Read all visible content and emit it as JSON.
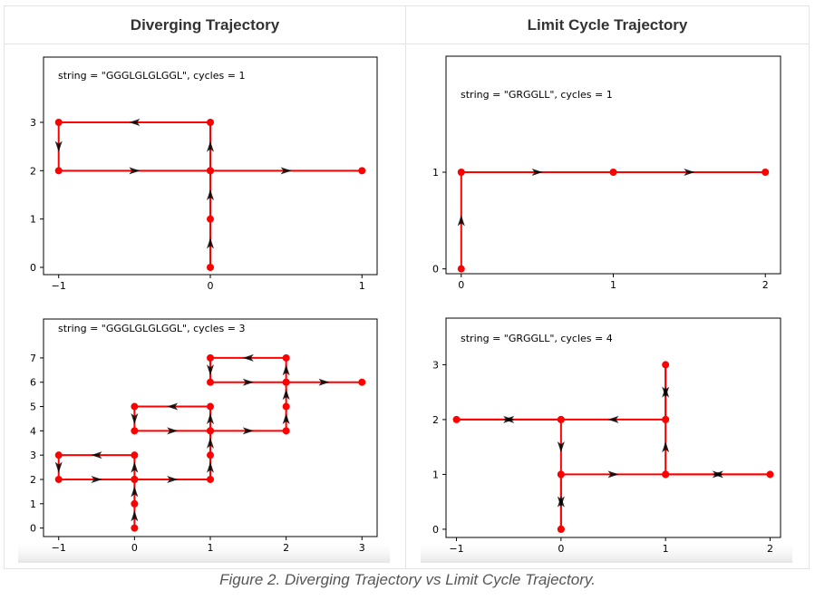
{
  "headers": {
    "left": "Diverging Trajectory",
    "right": "Limit Cycle Trajectory"
  },
  "caption": "Figure 2. Diverging Trajectory vs Limit Cycle Trajectory.",
  "colors": {
    "path": "#ff0000",
    "arrow": "#000000"
  },
  "chart_data": [
    {
      "type": "line",
      "annotation": "string = \"GGGLGLGLGGL\", cycles = 1",
      "xlim": [
        -1.1,
        1.1
      ],
      "ylim": [
        -0.15,
        4.35
      ],
      "xticks": [
        -1,
        0,
        1
      ],
      "xticklabels": [
        "−1",
        "0",
        "1"
      ],
      "yticks": [
        0,
        1,
        2,
        3
      ],
      "yticklabels": [
        "0",
        "1",
        "2",
        "3"
      ],
      "grid": false,
      "points": [
        [
          0,
          0
        ],
        [
          0,
          1
        ],
        [
          0,
          2
        ],
        [
          0,
          3
        ],
        [
          -1,
          3
        ],
        [
          -1,
          2
        ],
        [
          0,
          2
        ],
        [
          1,
          2
        ]
      ]
    },
    {
      "type": "line",
      "annotation": "string = \"GRGGLL\", cycles = 1",
      "xlim": [
        -0.1,
        2.1
      ],
      "ylim": [
        -0.05,
        2.2
      ],
      "xticks": [
        0,
        1,
        2
      ],
      "xticklabels": [
        "0",
        "1",
        "2"
      ],
      "yticks": [
        0,
        1
      ],
      "yticklabels": [
        "0",
        "1"
      ],
      "grid": false,
      "points": [
        [
          0,
          0
        ],
        [
          0,
          1
        ],
        [
          1,
          1
        ],
        [
          2,
          1
        ]
      ]
    },
    {
      "type": "line",
      "annotation": "string = \"GGGLGLGLGGL\", cycles = 3",
      "xlim": [
        -1.2,
        3.2
      ],
      "ylim": [
        -0.35,
        8.6
      ],
      "xticks": [
        -1,
        0,
        1,
        2,
        3
      ],
      "xticklabels": [
        "−1",
        "0",
        "1",
        "2",
        "3"
      ],
      "yticks": [
        0,
        1,
        2,
        3,
        4,
        5,
        6,
        7
      ],
      "yticklabels": [
        "0",
        "1",
        "2",
        "3",
        "4",
        "5",
        "6",
        "7"
      ],
      "grid": false,
      "points": [
        [
          0,
          0
        ],
        [
          0,
          1
        ],
        [
          0,
          2
        ],
        [
          0,
          3
        ],
        [
          -1,
          3
        ],
        [
          -1,
          2
        ],
        [
          0,
          2
        ],
        [
          1,
          2
        ],
        [
          1,
          3
        ],
        [
          1,
          4
        ],
        [
          1,
          5
        ],
        [
          0,
          5
        ],
        [
          0,
          4
        ],
        [
          1,
          4
        ],
        [
          2,
          4
        ],
        [
          2,
          5
        ],
        [
          2,
          6
        ],
        [
          2,
          7
        ],
        [
          1,
          7
        ],
        [
          1,
          6
        ],
        [
          2,
          6
        ],
        [
          3,
          6
        ]
      ]
    },
    {
      "type": "line",
      "annotation": "string = \"GRGGLL\", cycles = 4",
      "xlim": [
        -1.1,
        2.1
      ],
      "ylim": [
        -0.15,
        3.85
      ],
      "xticks": [
        -1,
        0,
        1,
        2
      ],
      "xticklabels": [
        "−1",
        "0",
        "1",
        "2"
      ],
      "yticks": [
        0,
        1,
        2,
        3
      ],
      "yticklabels": [
        "0",
        "1",
        "2",
        "3"
      ],
      "grid": false,
      "points": [
        [
          0,
          0
        ],
        [
          0,
          1
        ],
        [
          1,
          1
        ],
        [
          2,
          1
        ],
        [
          1,
          1
        ],
        [
          1,
          2
        ],
        [
          1,
          3
        ],
        [
          1,
          2
        ],
        [
          0,
          2
        ],
        [
          -1,
          2
        ],
        [
          0,
          2
        ],
        [
          0,
          1
        ],
        [
          0,
          0
        ]
      ]
    }
  ]
}
